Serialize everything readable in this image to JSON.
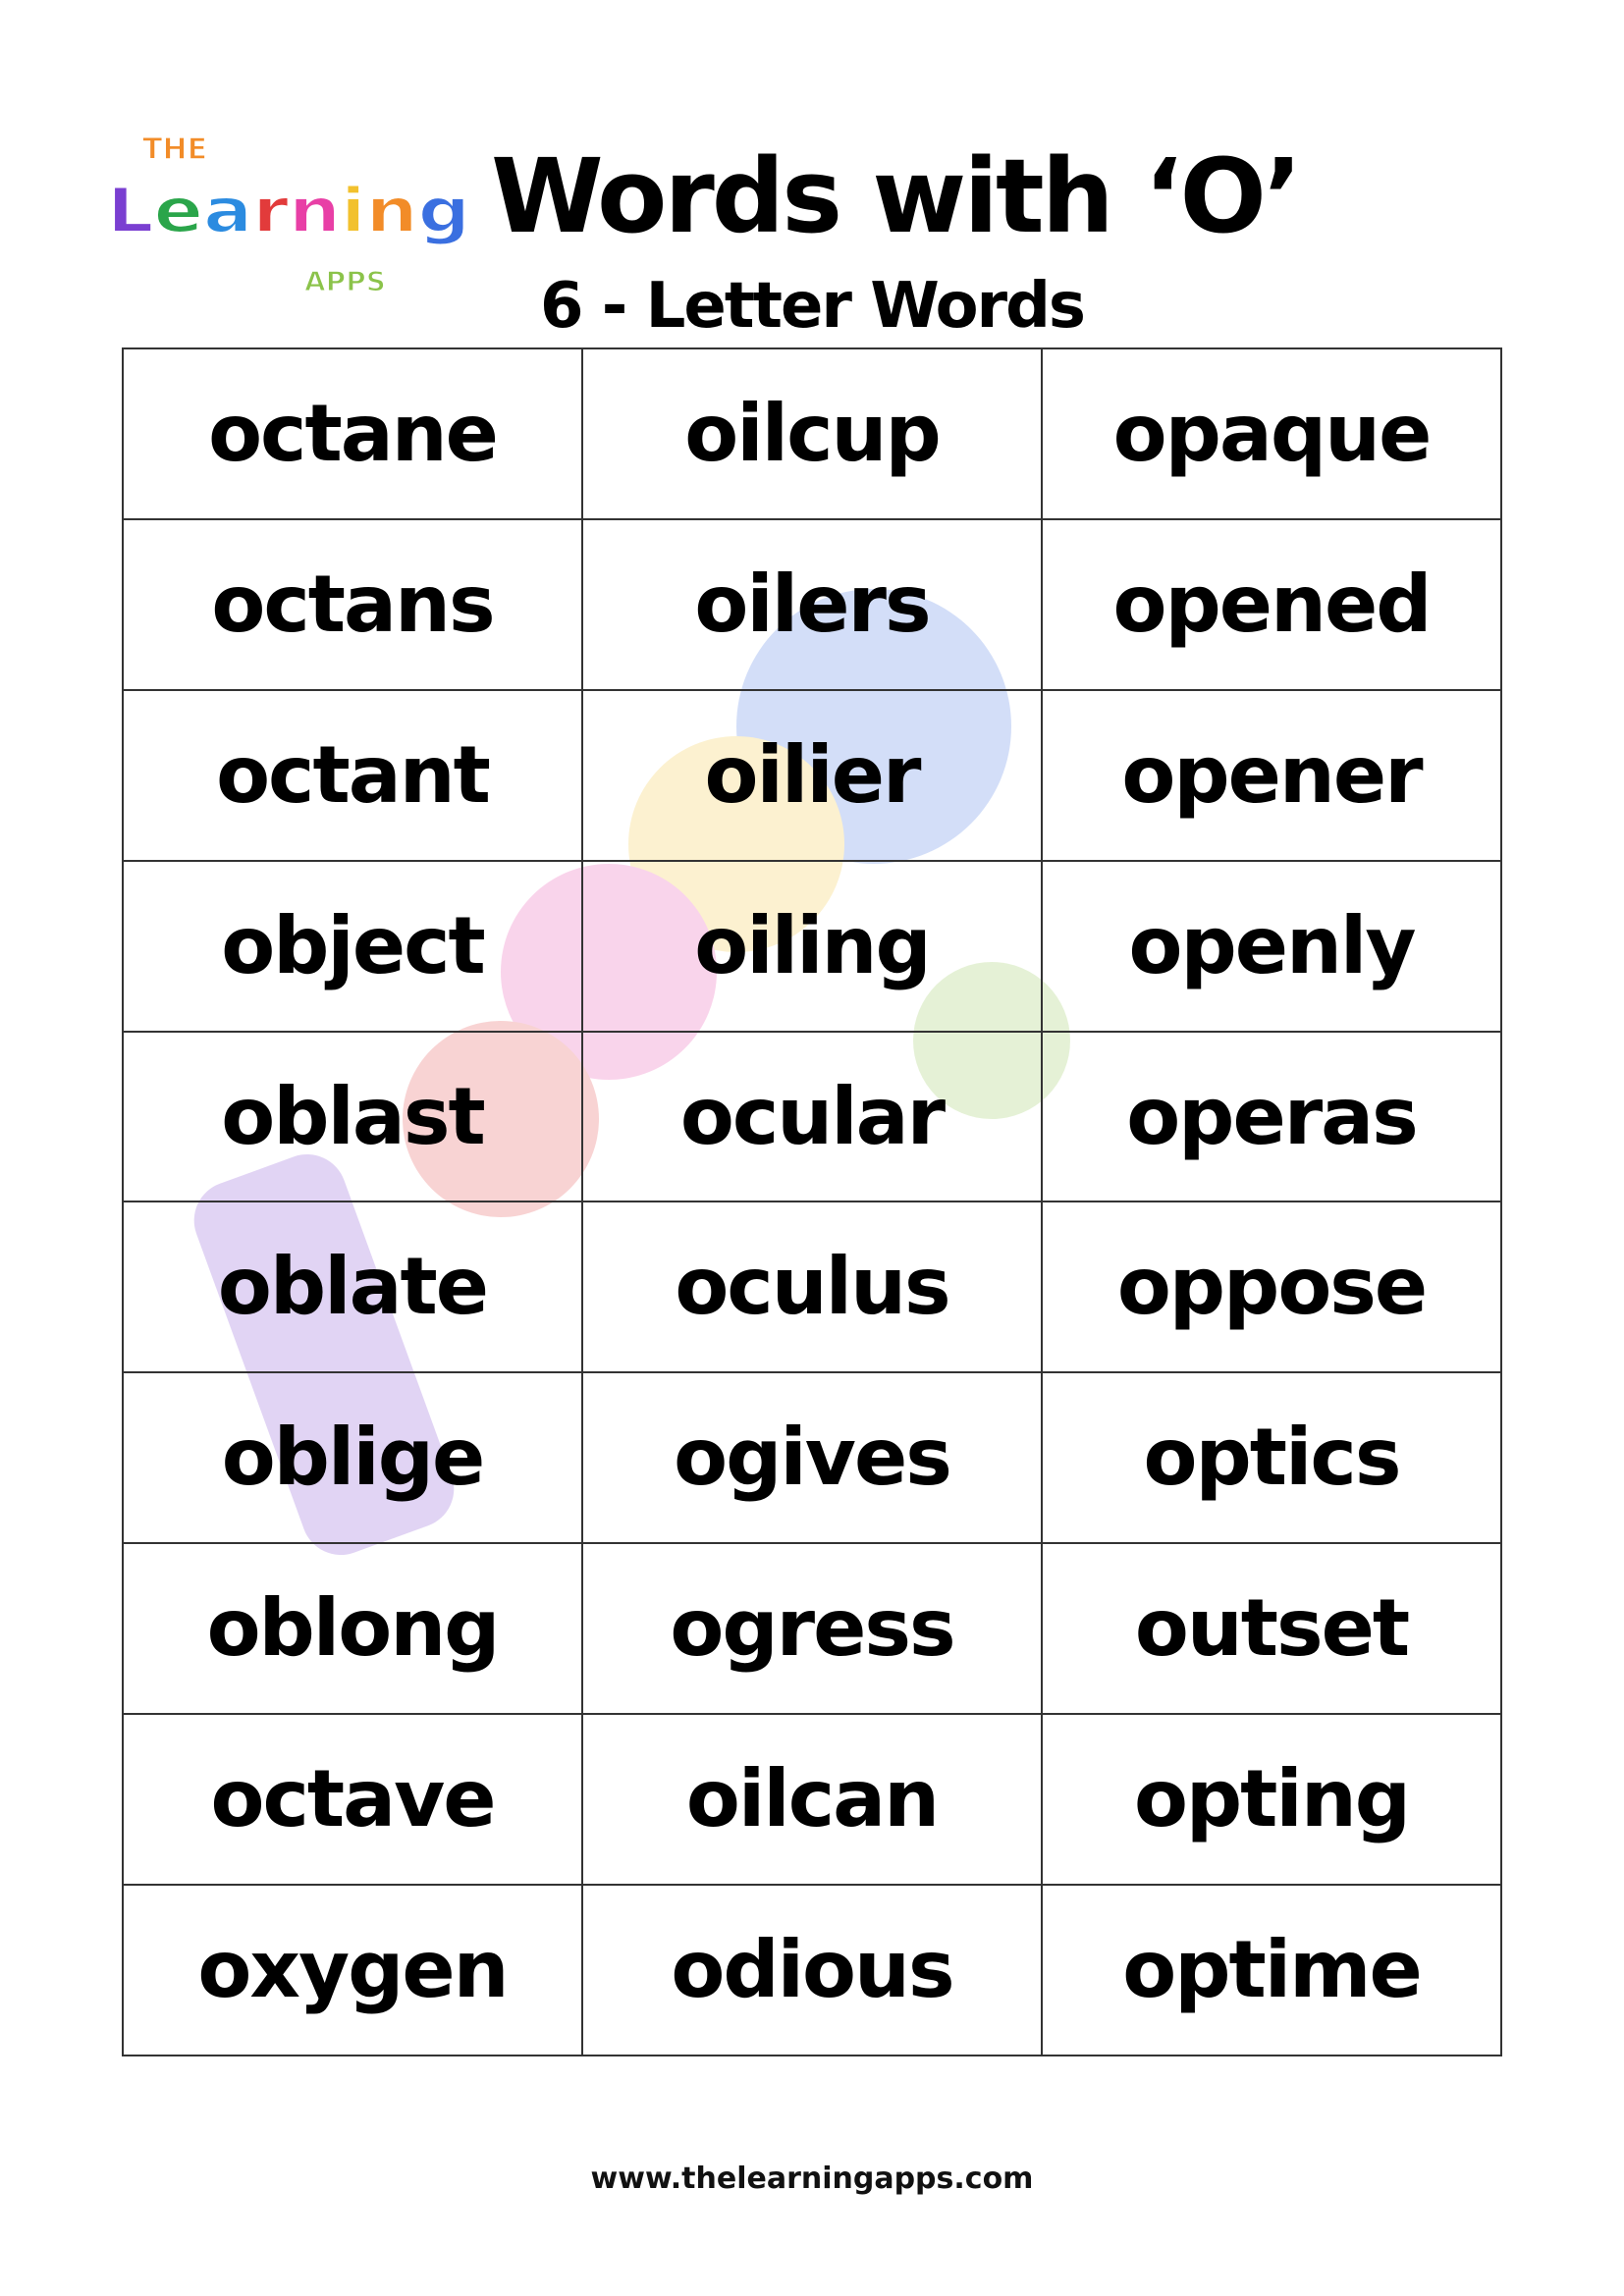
{
  "logo": {
    "text_top": "THE",
    "text_main": "Learning",
    "text_bottom": "APPS"
  },
  "header": {
    "title": "Words with ‘O’",
    "subtitle": "6 - Letter Words"
  },
  "table": {
    "rows": [
      [
        "octane",
        "oilcup",
        "opaque"
      ],
      [
        "octans",
        "oilers",
        "opened"
      ],
      [
        "octant",
        "oilier",
        "opener"
      ],
      [
        "object",
        "oiling",
        "openly"
      ],
      [
        "oblast",
        "ocular",
        "operas"
      ],
      [
        "oblate",
        "oculus",
        "oppose"
      ],
      [
        "oblige",
        "ogives",
        "optics"
      ],
      [
        "oblong",
        "ogress",
        "outset"
      ],
      [
        "octave",
        "oilcan",
        "opting"
      ],
      [
        "oxygen",
        "odious",
        "optime"
      ]
    ]
  },
  "footer": {
    "url": "www.thelearningapps.com"
  },
  "colors": {
    "text": "#000000",
    "border": "#333333"
  }
}
